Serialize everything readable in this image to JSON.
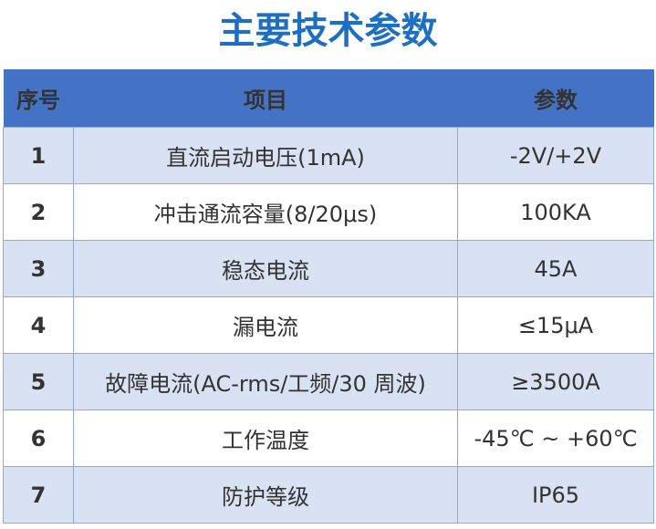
{
  "title": "主要技术参数",
  "headers": [
    "序号",
    "项目",
    "参数"
  ],
  "rows": [
    {
      "no": "1",
      "item": "直流启动电压(1mA)",
      "value": "-2V/+2V"
    },
    {
      "no": "2",
      "item": "冲击通流容量(8/20μs)",
      "value": "100KA"
    },
    {
      "no": "3",
      "item": "稳态电流",
      "value": "45A"
    },
    {
      "no": "4",
      "item": "漏电流",
      "value": "≤15μA"
    },
    {
      "no": "5",
      "item": "故障电流(AC-rms/工频/30 周波)",
      "value": "≥3500A"
    },
    {
      "no": "6",
      "item": "工作温度",
      "value": "-45℃  ~ +60℃"
    },
    {
      "no": "7",
      "item": "防护等级",
      "value": "IP65"
    }
  ],
  "colors": {
    "header": "#4472c4",
    "title": "#1d6fc4",
    "row_alt": "#d9e2f3"
  }
}
